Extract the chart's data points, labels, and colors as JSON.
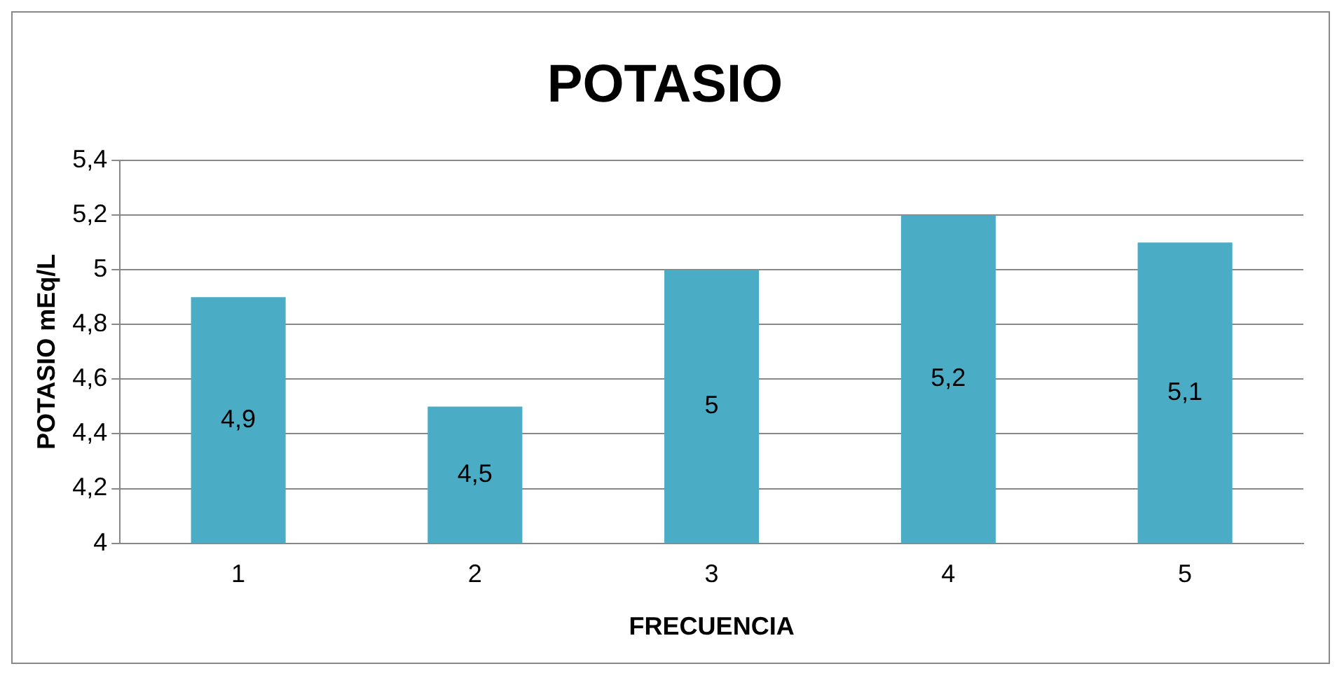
{
  "chart_data": {
    "type": "bar",
    "title": "POTASIO",
    "xlabel": "FRECUENCIA",
    "ylabel": "POTASIO mEq/L",
    "categories": [
      "1",
      "2",
      "3",
      "4",
      "5"
    ],
    "values": [
      4.9,
      4.5,
      5,
      5.2,
      5.1
    ],
    "value_labels": [
      "4,9",
      "4,5",
      "5",
      "5,2",
      "5,1"
    ],
    "color": "#4bacc6",
    "ylim": [
      4,
      5.4
    ],
    "yticks": [
      4,
      {
        "value": 4.2,
        "label": "4,2"
      },
      {
        "value": 4.4,
        "label": "4,4"
      },
      {
        "value": 4.6,
        "label": "4,6"
      },
      {
        "value": 4.8,
        "label": "4,8"
      },
      5,
      {
        "value": 5.2,
        "label": "5,2"
      },
      {
        "value": 5.4,
        "label": "5,4"
      }
    ],
    "grid": "y",
    "legend": false
  }
}
